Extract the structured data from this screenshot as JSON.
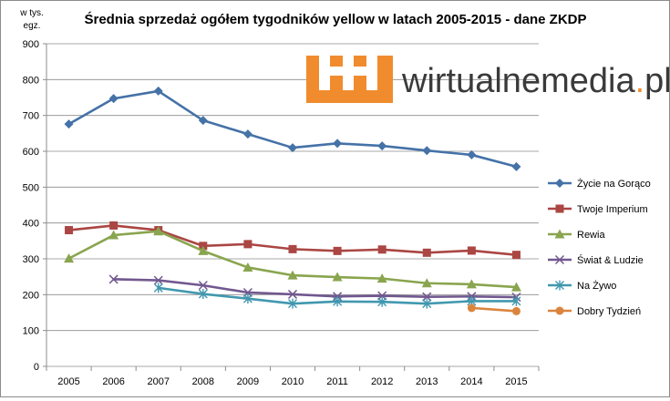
{
  "chart_data": {
    "type": "line",
    "title": "Średnia sprzedaż ogółem tygodników yellow w latach 2005-2015 - dane ZKDP",
    "ylabel_line1": "w tys.",
    "ylabel_line2": "egz.",
    "xlabel": "",
    "ylim": [
      0,
      900
    ],
    "yticks": [
      "0",
      "100",
      "200",
      "300",
      "400",
      "500",
      "600",
      "700",
      "800",
      "900"
    ],
    "categories": [
      "2005",
      "2006",
      "2007",
      "2008",
      "2009",
      "2010",
      "2011",
      "2012",
      "2013",
      "2014",
      "2015"
    ],
    "grid": true,
    "legend_position": "right",
    "series": [
      {
        "name": "Życie na Gorąco",
        "marker": "diamond",
        "color": "#4572a7",
        "values": [
          676,
          747,
          768,
          686,
          648,
          610,
          622,
          615,
          602,
          590,
          557
        ]
      },
      {
        "name": "Twoje Imperium",
        "marker": "square",
        "color": "#aa4643",
        "values": [
          380,
          393,
          380,
          336,
          341,
          327,
          322,
          326,
          317,
          323,
          311
        ]
      },
      {
        "name": "Rewia",
        "marker": "triangle",
        "color": "#89a54e",
        "values": [
          301,
          366,
          377,
          322,
          276,
          254,
          249,
          245,
          232,
          229,
          221
        ]
      },
      {
        "name": "Świat & Ludzie",
        "marker": "x",
        "color": "#71588f",
        "values": [
          null,
          243,
          240,
          226,
          206,
          201,
          195,
          197,
          194,
          195,
          193
        ]
      },
      {
        "name": "Na Żywo",
        "marker": "star",
        "color": "#4198af",
        "values": [
          null,
          null,
          219,
          202,
          189,
          175,
          181,
          180,
          175,
          182,
          182
        ]
      },
      {
        "name": "Dobry Tydzień",
        "marker": "circle",
        "color": "#db843d",
        "values": [
          null,
          null,
          null,
          null,
          null,
          null,
          null,
          null,
          null,
          163,
          154
        ]
      }
    ]
  },
  "watermark": {
    "text_main": "wirtualnemedia",
    "text_dot": ".",
    "text_tld": "pl",
    "brand_color": "#f08c2e",
    "text_color": "#3a3a3a"
  }
}
